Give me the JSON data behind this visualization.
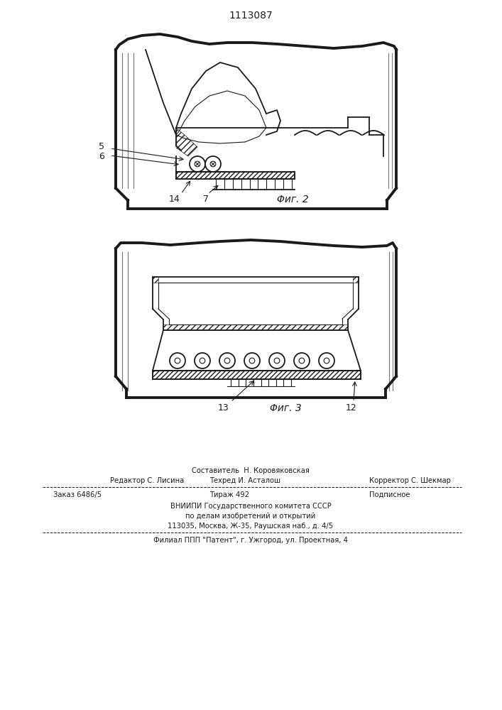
{
  "title": "1113087",
  "fig2_caption": "Φиг. 2",
  "fig3_caption": "Φиг. 3",
  "label_5": "5",
  "label_6": "6",
  "label_14": "14",
  "label_7": "7",
  "label_13": "13",
  "label_12": "12",
  "footer_line1": "Составитель  Н. Коровяковская",
  "footer_line2_left": "Редактор С. Лисина",
  "footer_line2_mid": "Техред И. Асталош",
  "footer_line2_right": "Корректор С. Шекмар",
  "footer_line3_left": "Заказ 6486/5",
  "footer_line3_mid": "Тираж 492",
  "footer_line3_right": "Подписное",
  "footer_line4": "ВНИИПИ Государственного комитета СССР",
  "footer_line5": "по делам изобретений и открытий",
  "footer_line6": "113035, Москва, Ж-35, Раушская наб., д. 4/5",
  "footer_line7": "Филиал ППП \"Патент\", г. Ужгород, ул. Проектная, 4",
  "bg_color": "#ffffff",
  "line_color": "#1a1a1a"
}
